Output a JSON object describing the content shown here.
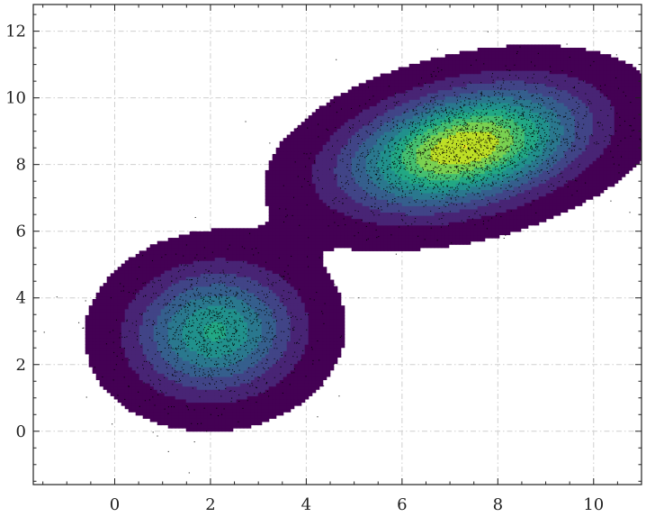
{
  "chart_data": {
    "type": "kde-contour-scatter",
    "title": "",
    "xlabel": "",
    "ylabel": "",
    "xlim": [
      -1.7,
      11.0
    ],
    "ylim": [
      -1.6,
      12.8
    ],
    "x_ticks": [
      0,
      2,
      4,
      6,
      8,
      10
    ],
    "y_ticks": [
      0,
      2,
      4,
      6,
      8,
      10,
      12
    ],
    "x_tick_labels": [
      "0",
      "2",
      "4",
      "6",
      "8",
      "10"
    ],
    "y_tick_labels": [
      "0",
      "2",
      "4",
      "6",
      "8",
      "10",
      "12"
    ],
    "grid": true,
    "colormap": "viridis",
    "contour_levels": 10,
    "contour_colors": [
      "#440154",
      "#482475",
      "#414487",
      "#355f8d",
      "#2a788e",
      "#21918c",
      "#22a884",
      "#44bf70",
      "#7ad151",
      "#bddf26",
      "#fde725"
    ],
    "series": [
      {
        "center": [
          2.1,
          3.0
        ],
        "std": [
          0.95,
          1.05
        ],
        "correlation": 0.05,
        "weight": 0.33,
        "n_points": 1200
      },
      {
        "center": [
          7.3,
          8.5
        ],
        "std": [
          1.35,
          1.0
        ],
        "correlation": 0.35,
        "weight": 0.67,
        "n_points": 2400
      }
    ],
    "point_color": "#000000"
  }
}
